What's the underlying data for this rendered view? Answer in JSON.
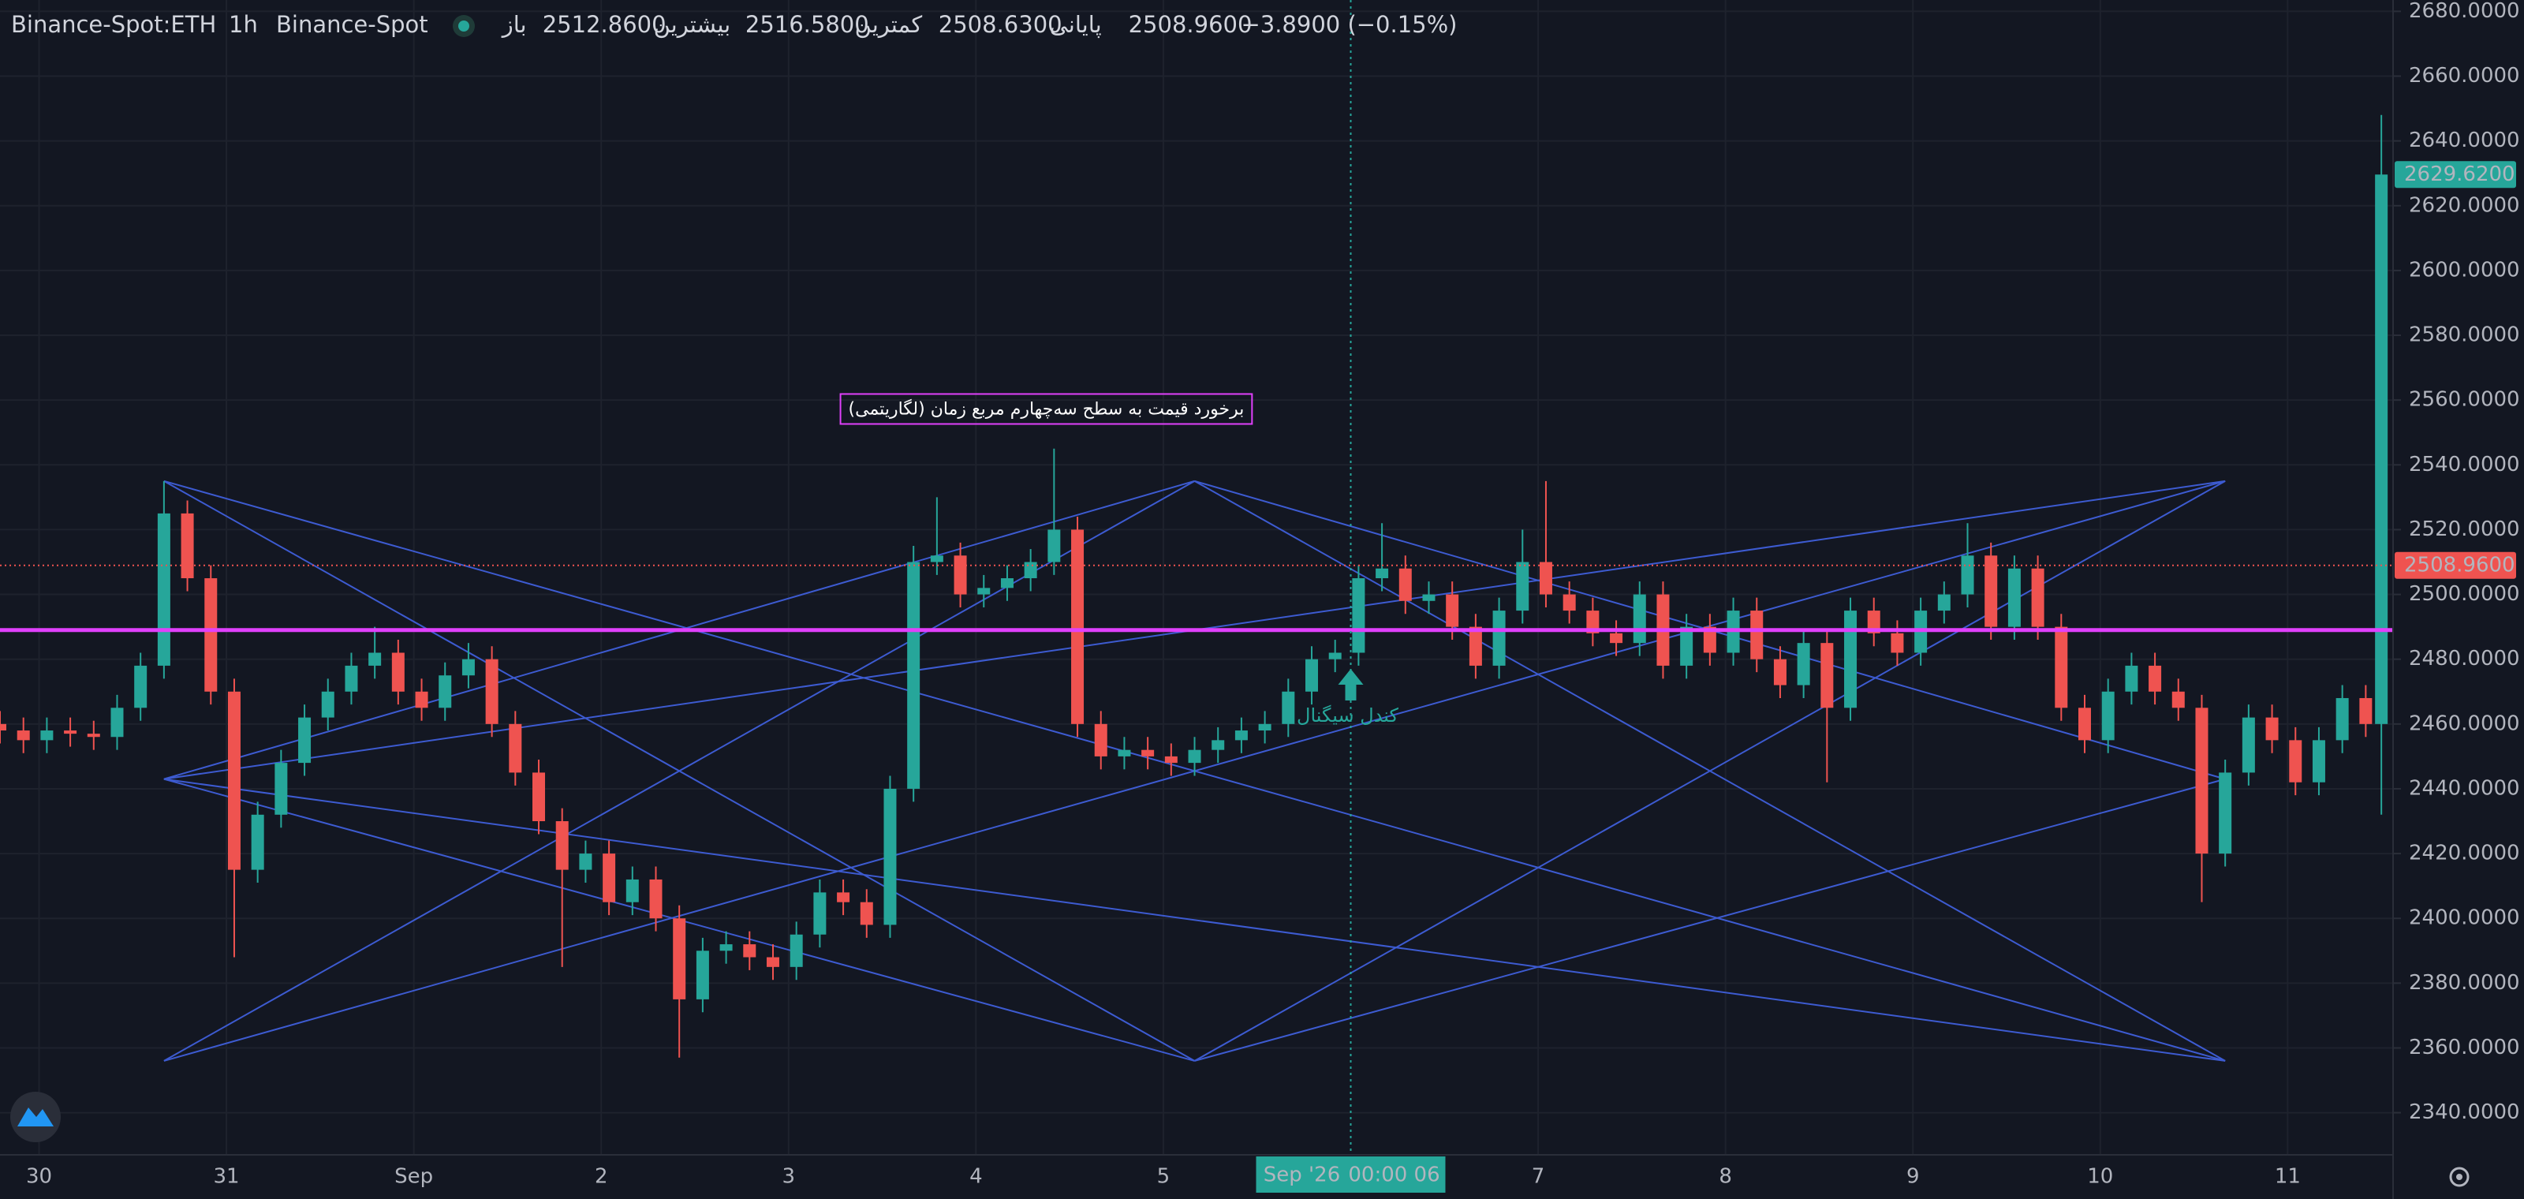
{
  "header": {
    "symbol": "Binance-Spot:ETH",
    "interval": "1h",
    "exchange": "Binance-Spot",
    "legend": [
      {
        "text": "باز",
        "color": "#b2b5be",
        "x": 312
      },
      {
        "text": "2512.8600",
        "color": "#ef5350",
        "x": 337
      },
      {
        "text": "بیشترین",
        "color": "#b2b5be",
        "x": 406
      },
      {
        "text": "2516.5800",
        "color": "#ef5350",
        "x": 463
      },
      {
        "text": "کمترین",
        "color": "#b2b5be",
        "x": 531
      },
      {
        "text": "2508.6300",
        "color": "#ef5350",
        "x": 583
      },
      {
        "text": "پایانی",
        "color": "#b2b5be",
        "x": 652
      },
      {
        "text": "2508.9600",
        "color": "#ef5350",
        "x": 701
      },
      {
        "text": "−3.8900 (−0.15%)",
        "color": "#ef5350",
        "x": 771
      }
    ]
  },
  "chart_data": {
    "type": "candlestick",
    "up_color": "#26a69a",
    "down_color": "#ef5350",
    "grid": true,
    "xlim": [
      0,
      306.5
    ],
    "ylim": [
      2327,
      2683.5
    ],
    "xticks": [
      {
        "value": 5,
        "label": "30"
      },
      {
        "value": 29,
        "label": "31"
      },
      {
        "value": 53,
        "label": "Sep"
      },
      {
        "value": 77,
        "label": "2"
      },
      {
        "value": 101,
        "label": "3"
      },
      {
        "value": 125,
        "label": "4"
      },
      {
        "value": 149,
        "label": "5"
      },
      {
        "value": 197,
        "label": "7"
      },
      {
        "value": 221,
        "label": "8"
      },
      {
        "value": 245,
        "label": "9"
      },
      {
        "value": 269,
        "label": "10"
      },
      {
        "value": 293,
        "label": "11"
      }
    ],
    "yticks": [
      {
        "value": 2340,
        "label": "2340.0000"
      },
      {
        "value": 2360,
        "label": "2360.0000"
      },
      {
        "value": 2380,
        "label": "2380.0000"
      },
      {
        "value": 2400,
        "label": "2400.0000"
      },
      {
        "value": 2420,
        "label": "2420.0000"
      },
      {
        "value": 2440,
        "label": "2440.0000"
      },
      {
        "value": 2460,
        "label": "2460.0000"
      },
      {
        "value": 2480,
        "label": "2480.0000"
      },
      {
        "value": 2500,
        "label": "2500.0000"
      },
      {
        "value": 2520,
        "label": "2520.0000"
      },
      {
        "value": 2540,
        "label": "2540.0000"
      },
      {
        "value": 2560,
        "label": "2560.0000"
      },
      {
        "value": 2580,
        "label": "2580.0000"
      },
      {
        "value": 2600,
        "label": "2600.0000"
      },
      {
        "value": 2620,
        "label": "2620.0000"
      },
      {
        "value": 2640,
        "label": "2640.0000"
      },
      {
        "value": 2660,
        "label": "2660.0000"
      },
      {
        "value": 2680,
        "label": "2680.0000"
      }
    ],
    "x": [
      0,
      3,
      6,
      9,
      12,
      15,
      18,
      21,
      24,
      27,
      30,
      33,
      36,
      39,
      42,
      45,
      48,
      51,
      54,
      57,
      60,
      63,
      66,
      69,
      72,
      75,
      78,
      81,
      84,
      87,
      90,
      93,
      96,
      99,
      102,
      105,
      108,
      111,
      114,
      117,
      120,
      123,
      126,
      129,
      132,
      135,
      138,
      141,
      144,
      147,
      150,
      153,
      156,
      159,
      162,
      165,
      168,
      171,
      174,
      177,
      180,
      183,
      186,
      189,
      192,
      195,
      198,
      201,
      204,
      207,
      210,
      213,
      216,
      219,
      222,
      225,
      228,
      231,
      234,
      237,
      240,
      243,
      246,
      249,
      252,
      255,
      258,
      261,
      264,
      267,
      270,
      273,
      276,
      279,
      282,
      285,
      288,
      291,
      294,
      297,
      300,
      303,
      305
    ],
    "open": [
      2460,
      2458,
      2455,
      2458,
      2457,
      2456,
      2465,
      2478,
      2525,
      2505,
      2470,
      2415,
      2432,
      2448,
      2462,
      2470,
      2478,
      2482,
      2470,
      2465,
      2475,
      2480,
      2460,
      2445,
      2430,
      2415,
      2420,
      2405,
      2412,
      2400,
      2375,
      2390,
      2392,
      2388,
      2385,
      2395,
      2408,
      2405,
      2398,
      2440,
      2510,
      2512,
      2500,
      2502,
      2505,
      2510,
      2520,
      2460,
      2450,
      2452,
      2450,
      2448,
      2452,
      2455,
      2458,
      2460,
      2470,
      2480,
      2482,
      2505,
      2508,
      2498,
      2500,
      2490,
      2478,
      2495,
      2510,
      2500,
      2495,
      2488,
      2485,
      2500,
      2478,
      2490,
      2482,
      2495,
      2480,
      2472,
      2485,
      2465,
      2495,
      2488,
      2482,
      2495,
      2500,
      2512,
      2490,
      2508,
      2490,
      2465,
      2455,
      2470,
      2478,
      2470,
      2465,
      2420,
      2445,
      2462,
      2455,
      2442,
      2455,
      2468,
      2460
    ],
    "high": [
      2464,
      2462,
      2462,
      2462,
      2461,
      2469,
      2482,
      2535,
      2529,
      2509,
      2474,
      2436,
      2452,
      2466,
      2474,
      2482,
      2490,
      2486,
      2474,
      2479,
      2485,
      2484,
      2464,
      2449,
      2434,
      2424,
      2424,
      2416,
      2416,
      2404,
      2394,
      2396,
      2396,
      2392,
      2399,
      2412,
      2412,
      2409,
      2444,
      2515,
      2530,
      2516,
      2506,
      2509,
      2514,
      2545,
      2524,
      2464,
      2456,
      2456,
      2454,
      2456,
      2459,
      2462,
      2464,
      2474,
      2484,
      2486,
      2509,
      2522,
      2512,
      2504,
      2504,
      2494,
      2499,
      2520,
      2535,
      2504,
      2499,
      2492,
      2504,
      2504,
      2494,
      2494,
      2499,
      2499,
      2484,
      2489,
      2489,
      2499,
      2499,
      2492,
      2499,
      2504,
      2522,
      2516,
      2512,
      2512,
      2494,
      2469,
      2474,
      2482,
      2482,
      2474,
      2469,
      2449,
      2466,
      2466,
      2459,
      2459,
      2472,
      2472,
      2648
    ],
    "low": [
      2454,
      2451,
      2451,
      2453,
      2452,
      2452,
      2461,
      2474,
      2501,
      2466,
      2388,
      2411,
      2428,
      2444,
      2458,
      2466,
      2474,
      2466,
      2461,
      2461,
      2471,
      2456,
      2441,
      2426,
      2385,
      2411,
      2401,
      2401,
      2396,
      2357,
      2371,
      2386,
      2384,
      2381,
      2381,
      2391,
      2401,
      2394,
      2394,
      2436,
      2506,
      2496,
      2496,
      2498,
      2501,
      2506,
      2456,
      2446,
      2446,
      2446,
      2444,
      2444,
      2448,
      2451,
      2454,
      2456,
      2466,
      2476,
      2478,
      2501,
      2494,
      2494,
      2486,
      2474,
      2474,
      2491,
      2496,
      2491,
      2484,
      2481,
      2481,
      2474,
      2474,
      2478,
      2478,
      2476,
      2468,
      2468,
      2442,
      2461,
      2484,
      2478,
      2478,
      2491,
      2496,
      2486,
      2486,
      2486,
      2461,
      2451,
      2451,
      2466,
      2466,
      2461,
      2405,
      2416,
      2441,
      2451,
      2438,
      2438,
      2451,
      2456,
      2432
    ],
    "close": [
      2458,
      2455,
      2458,
      2457,
      2456,
      2465,
      2478,
      2525,
      2505,
      2470,
      2415,
      2432,
      2448,
      2462,
      2470,
      2478,
      2482,
      2470,
      2465,
      2475,
      2480,
      2460,
      2445,
      2430,
      2415,
      2420,
      2405,
      2412,
      2400,
      2375,
      2390,
      2392,
      2388,
      2385,
      2395,
      2408,
      2405,
      2398,
      2440,
      2510,
      2512,
      2500,
      2502,
      2505,
      2510,
      2520,
      2460,
      2450,
      2452,
      2450,
      2448,
      2452,
      2455,
      2458,
      2460,
      2470,
      2480,
      2482,
      2505,
      2508,
      2498,
      2500,
      2490,
      2478,
      2495,
      2510,
      2500,
      2495,
      2488,
      2485,
      2500,
      2478,
      2490,
      2482,
      2495,
      2480,
      2472,
      2485,
      2465,
      2495,
      2488,
      2482,
      2495,
      2500,
      2512,
      2490,
      2508,
      2490,
      2465,
      2455,
      2470,
      2478,
      2470,
      2465,
      2420,
      2445,
      2462,
      2455,
      2442,
      2455,
      2468,
      2460,
      2629.62
    ],
    "drawings_color": "#3d5bd1",
    "drawings": [
      {
        "x": [
          21,
          153
        ],
        "y": [
          2535,
          2356
        ]
      },
      {
        "x": [
          21,
          153
        ],
        "y": [
          2356,
          2535
        ]
      },
      {
        "x": [
          21,
          153
        ],
        "y": [
          2443,
          2535
        ]
      },
      {
        "x": [
          21,
          153
        ],
        "y": [
          2443,
          2356
        ]
      },
      {
        "x": [
          153,
          285
        ],
        "y": [
          2535,
          2356
        ]
      },
      {
        "x": [
          153,
          285
        ],
        "y": [
          2356,
          2535
        ]
      },
      {
        "x": [
          21,
          285
        ],
        "y": [
          2443,
          2535
        ]
      },
      {
        "x": [
          21,
          285
        ],
        "y": [
          2443,
          2356
        ]
      },
      {
        "x": [
          21,
          285
        ],
        "y": [
          2356,
          2535
        ]
      },
      {
        "x": [
          21,
          285
        ],
        "y": [
          2535,
          2356
        ]
      },
      {
        "x": [
          285,
          153
        ],
        "y": [
          2443,
          2535
        ]
      },
      {
        "x": [
          285,
          153
        ],
        "y": [
          2443,
          2356
        ]
      }
    ],
    "level": 2489,
    "level_color": "#e040fb",
    "price_labels": [
      {
        "value": 2629.62,
        "label": "2629.6200",
        "color": "#26a69a"
      },
      {
        "value": 2508.96,
        "label": "2508.9600",
        "color": "#ef5350"
      }
    ],
    "annotations": [
      {
        "text": "برخورد قیمت به سطح سه‌چهارم مربع زمان (لگاریتمی)",
        "x": 134,
        "y": 2557,
        "color": "#e040fb"
      }
    ],
    "signal": {
      "text": "کندل سیگنال",
      "x": 173,
      "y": 2477,
      "color": "#26a69a"
    },
    "crosshair": {
      "x": 173,
      "labels": [
        "Sep '26",
        "00:00 06"
      ]
    }
  }
}
